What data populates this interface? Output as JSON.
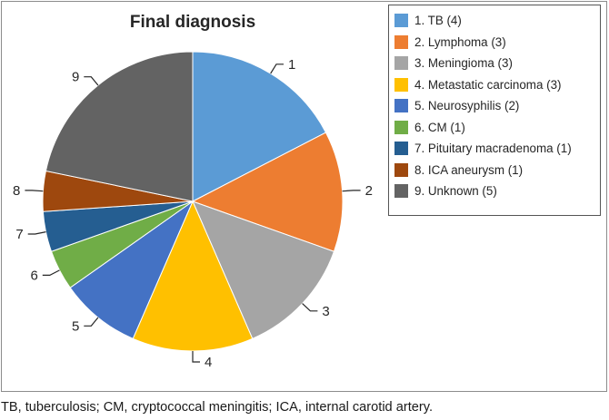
{
  "colors": [
    "#5b9bd5",
    "#ed7d31",
    "#a5a5a5",
    "#ffc000",
    "#4472c4",
    "#70ad47",
    "#255e91",
    "#9e480e",
    "#636363"
  ],
  "chart_data": {
    "type": "pie",
    "title": "Final diagnosis",
    "legend_position": "right",
    "categories": [
      "1. TB (4)",
      "2. Lymphoma (3)",
      "3. Meningioma (3)",
      "4. Metastatic carcinoma (3)",
      "5. Neurosyphilis (2)",
      "6. CM (1)",
      "7. Pituitary macradenoma (1)",
      "8. ICA aneurysm (1)",
      "9. Unknown (5)"
    ],
    "slice_labels": [
      "1",
      "2",
      "3",
      "4",
      "5",
      "6",
      "7",
      "8",
      "9"
    ],
    "values": [
      4,
      3,
      3,
      3,
      2,
      1,
      1,
      1,
      5
    ]
  },
  "caption": "TB, tuberculosis; CM, cryptococcal meningitis; ICA, internal carotid artery."
}
